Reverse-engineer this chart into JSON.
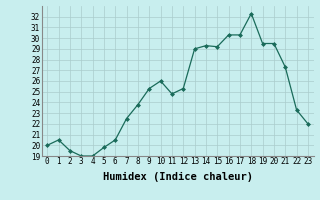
{
  "x": [
    0,
    1,
    2,
    3,
    4,
    5,
    6,
    7,
    8,
    9,
    10,
    11,
    12,
    13,
    14,
    15,
    16,
    17,
    18,
    19,
    20,
    21,
    22,
    23
  ],
  "y": [
    20.0,
    20.5,
    19.5,
    19.0,
    19.0,
    19.8,
    20.5,
    22.5,
    23.8,
    25.3,
    26.0,
    24.8,
    25.3,
    29.0,
    29.3,
    29.2,
    30.3,
    30.3,
    32.3,
    29.5,
    29.5,
    27.3,
    23.3,
    22.0
  ],
  "line_color": "#1a6b5a",
  "marker": "D",
  "marker_size": 2.0,
  "xlabel": "Humidex (Indice chaleur)",
  "bg_color": "#c8eeee",
  "grid_color": "#aacccc",
  "xlim": [
    -0.5,
    23.5
  ],
  "ylim": [
    19,
    33
  ],
  "yticks": [
    19,
    20,
    21,
    22,
    23,
    24,
    25,
    26,
    27,
    28,
    29,
    30,
    31,
    32
  ],
  "xticks": [
    0,
    1,
    2,
    3,
    4,
    5,
    6,
    7,
    8,
    9,
    10,
    11,
    12,
    13,
    14,
    15,
    16,
    17,
    18,
    19,
    20,
    21,
    22,
    23
  ],
  "tick_fontsize": 5.5,
  "label_fontsize": 7.5
}
